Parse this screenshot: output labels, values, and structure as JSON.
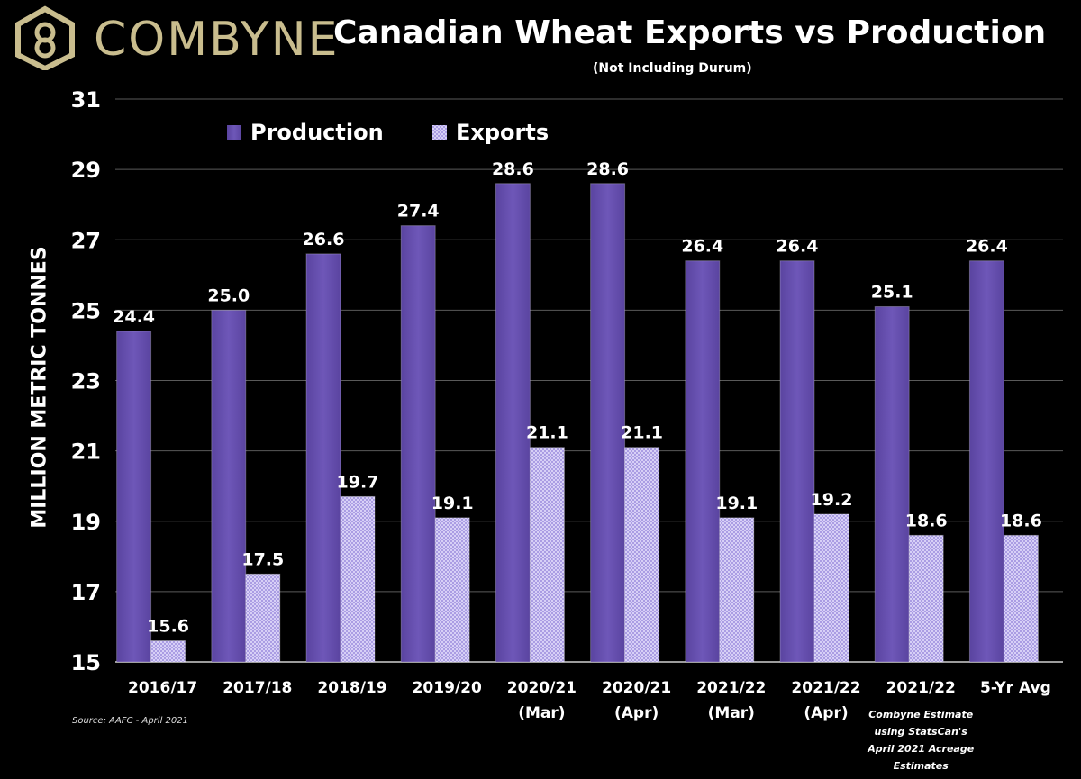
{
  "brand": {
    "name": "COMBYNE",
    "logo_icon": "combyne-hexagon-logo-icon"
  },
  "header": {
    "title": "Canadian Wheat Exports vs Production",
    "subtitle": "(Not Including Durum)"
  },
  "source": "Source: AAFC - April 2021",
  "colors": {
    "production": "#6a52b0",
    "exports": "#b8aef0",
    "text": "#ffffff",
    "background": "#000000",
    "logo": "#c9bd8e"
  },
  "chart_data": {
    "type": "bar",
    "title": "Canadian Wheat Exports vs Production",
    "subtitle": "(Not Including Durum)",
    "xlabel": "",
    "ylabel": "MILLION METRIC TONNES",
    "ylim": [
      15,
      31
    ],
    "yticks": [
      15,
      17,
      19,
      21,
      23,
      25,
      27,
      29,
      31
    ],
    "grid": "horizontal",
    "legend_position": "top-left",
    "categories": [
      [
        "2016/17"
      ],
      [
        "2017/18"
      ],
      [
        "2018/19"
      ],
      [
        "2019/20"
      ],
      [
        "2020/21",
        "(Mar)"
      ],
      [
        "2020/21",
        "(Apr)"
      ],
      [
        "2021/22",
        "(Mar)"
      ],
      [
        "2021/22",
        "(Apr)"
      ],
      [
        "2021/22"
      ],
      [
        "5-Yr Avg"
      ]
    ],
    "category_notes": [
      null,
      null,
      null,
      null,
      null,
      null,
      null,
      null,
      [
        "Combyne Estimate",
        "using StatsCan's",
        "April 2021 Acreage",
        "Estimates"
      ],
      null
    ],
    "series": [
      {
        "name": "Production",
        "values": [
          24.4,
          25.0,
          26.6,
          27.4,
          28.6,
          28.6,
          26.4,
          26.4,
          25.1,
          26.4
        ],
        "labels": [
          "24.4",
          "25.0",
          "26.6",
          "27.4",
          "28.6",
          "28.6",
          "26.4",
          "26.4",
          "25.1",
          "26.4"
        ]
      },
      {
        "name": "Exports",
        "values": [
          15.6,
          17.5,
          19.7,
          19.1,
          21.1,
          21.1,
          19.1,
          19.2,
          18.6,
          18.6
        ],
        "labels": [
          "15.6",
          "17.5",
          "19.7",
          "19.1",
          "21.1",
          "21.1",
          "19.1",
          "19.2",
          "18.6",
          "18.6"
        ]
      }
    ]
  }
}
